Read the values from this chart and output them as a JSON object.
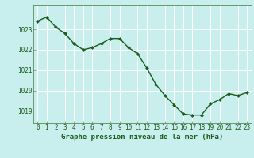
{
  "x": [
    0,
    1,
    2,
    3,
    4,
    5,
    6,
    7,
    8,
    9,
    10,
    11,
    12,
    13,
    14,
    15,
    16,
    17,
    18,
    19,
    20,
    21,
    22,
    23
  ],
  "y": [
    1023.4,
    1023.6,
    1023.1,
    1022.8,
    1022.3,
    1022.0,
    1022.1,
    1022.3,
    1022.55,
    1022.55,
    1022.1,
    1021.8,
    1021.1,
    1020.3,
    1019.75,
    1019.3,
    1018.85,
    1018.8,
    1018.8,
    1019.35,
    1019.55,
    1019.85,
    1019.75,
    1019.9
  ],
  "line_color": "#1a5c1a",
  "marker": "D",
  "marker_size": 2.0,
  "bg_color": "#c8eeee",
  "grid_color": "#ffffff",
  "xlabel": "Graphe pression niveau de la mer (hPa)",
  "xlabel_color": "#1a5c1a",
  "tick_color": "#1a5c1a",
  "spine_color": "#5a8a5a",
  "ylim_min": 1018.4,
  "ylim_max": 1024.2,
  "yticks": [
    1019,
    1020,
    1021,
    1022,
    1023
  ],
  "xticks": [
    0,
    1,
    2,
    3,
    4,
    5,
    6,
    7,
    8,
    9,
    10,
    11,
    12,
    13,
    14,
    15,
    16,
    17,
    18,
    19,
    20,
    21,
    22,
    23
  ],
  "tick_fontsize": 5.5,
  "xlabel_fontsize": 6.5,
  "line_width": 1.0
}
